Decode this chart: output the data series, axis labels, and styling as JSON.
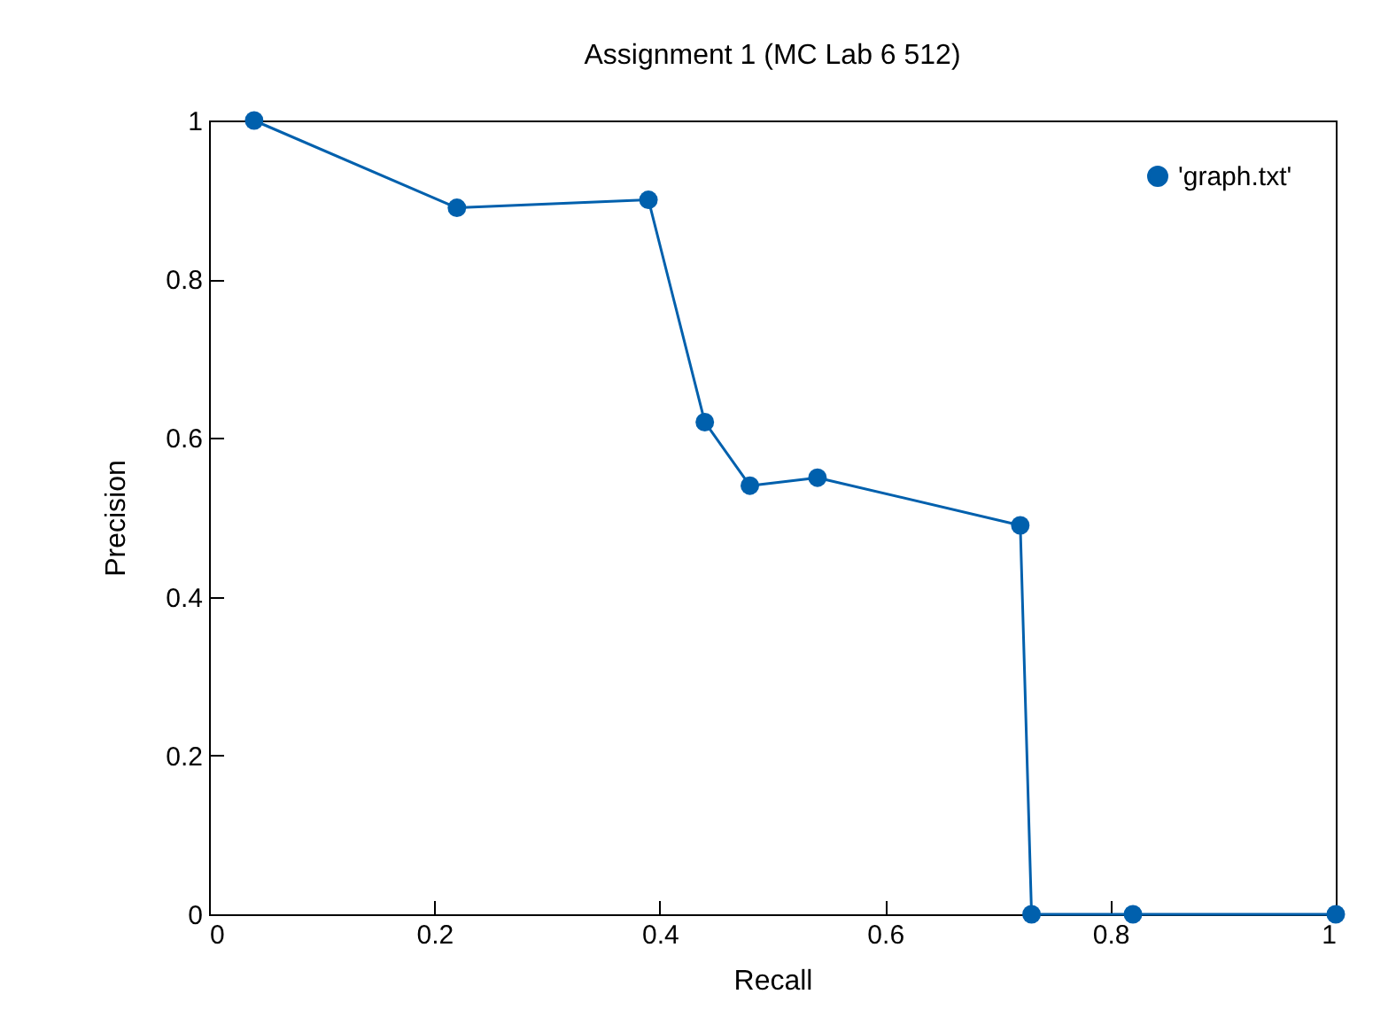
{
  "chart_data": {
    "type": "line",
    "title": "Assignment 1 (MC Lab 6 512)",
    "xlabel": "Recall",
    "ylabel": "Precision",
    "x": [
      0.04,
      0.22,
      0.39,
      0.44,
      0.48,
      0.54,
      0.72,
      0.73,
      0.82,
      1
    ],
    "series": [
      {
        "name": "'graph.txt'",
        "color": "#0060ad",
        "values": [
          1,
          0.89,
          0.9,
          0.62,
          0.54,
          0.55,
          0.49,
          0,
          0,
          0
        ]
      }
    ],
    "xlim": [
      0,
      1
    ],
    "xticks": [
      0,
      0.2,
      0.4,
      0.6,
      0.8,
      1
    ],
    "ylim": [
      0,
      1
    ],
    "yticks": [
      0,
      0.2,
      0.4,
      0.6,
      0.8,
      1
    ],
    "legend": "top right",
    "marker": "circle",
    "line_style": "solid"
  }
}
